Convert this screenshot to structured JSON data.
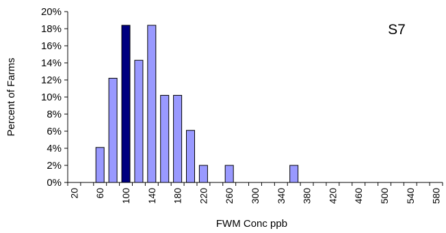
{
  "chart_data": {
    "type": "bar",
    "title": "",
    "annotation": "S7",
    "xlabel": "FWM Conc ppb",
    "ylabel": "Percent of Farms",
    "ylim": [
      0,
      20
    ],
    "ytick_values": [
      0,
      2,
      4,
      6,
      8,
      10,
      12,
      14,
      16,
      18,
      20
    ],
    "ytick_labels": [
      "0%",
      "2%",
      "4%",
      "6%",
      "8%",
      "10%",
      "12%",
      "14%",
      "16%",
      "18%",
      "20%"
    ],
    "categories": [
      "20",
      "40",
      "60",
      "80",
      "100",
      "120",
      "140",
      "160",
      "180",
      "200",
      "220",
      "240",
      "260",
      "280",
      "300",
      "320",
      "340",
      "360",
      "380",
      "400",
      "420",
      "440",
      "460",
      "480",
      "500",
      "520",
      "540",
      "560",
      "580"
    ],
    "xtick_labels": [
      "20",
      "",
      "60",
      "",
      "100",
      "",
      "140",
      "",
      "180",
      "",
      "220",
      "",
      "260",
      "",
      "300",
      "",
      "340",
      "",
      "380",
      "",
      "420",
      "",
      "460",
      "",
      "500",
      "",
      "540",
      "",
      "580"
    ],
    "values": [
      0,
      0,
      4.1,
      12.2,
      18.4,
      14.3,
      18.4,
      10.2,
      10.2,
      6.1,
      2.0,
      0,
      2.0,
      0,
      0,
      0,
      0,
      2.0,
      0,
      0,
      0,
      0,
      0,
      0,
      0,
      0,
      0,
      0,
      0
    ],
    "highlight_index": 4,
    "colors": {
      "bar_fill": "#9999ff",
      "bar_highlight": "#000080",
      "bar_stroke": "#000000",
      "axis": "#000000"
    },
    "grid": false,
    "legend": "none"
  }
}
